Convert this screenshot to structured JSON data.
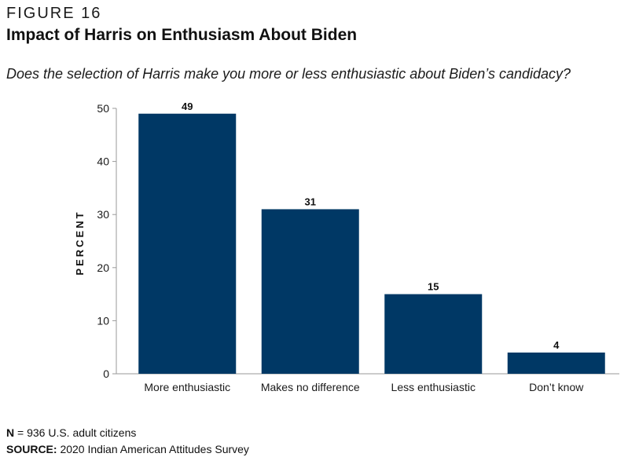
{
  "figure_label": "FIGURE 16",
  "title": "Impact of Harris on Enthusiasm About Biden",
  "subtitle": "Does the selection of Harris make you more or less enthusiastic about Biden’s candidacy?",
  "footnote": {
    "n_label": "N",
    "n_text": " = 936 U.S. adult citizens",
    "source_label": "SOURCE:",
    "source_text": " 2020 Indian American Attitudes Survey"
  },
  "chart_data": {
    "type": "bar",
    "categories": [
      "More enthusiastic",
      "Makes no difference",
      "Less enthusiastic",
      "Don’t know"
    ],
    "values": [
      49,
      31,
      15,
      4
    ],
    "data_labels": [
      "49",
      "31",
      "15",
      "4"
    ],
    "ylabel": "PERCENT",
    "xlabel": "",
    "ylim": [
      0,
      50
    ],
    "yticks": [
      0,
      10,
      20,
      30,
      40,
      50
    ],
    "ytick_labels": [
      "0",
      "10",
      "20",
      "30",
      "40",
      "50"
    ],
    "grid": false,
    "legend": "none",
    "bar_color": "#003865"
  }
}
